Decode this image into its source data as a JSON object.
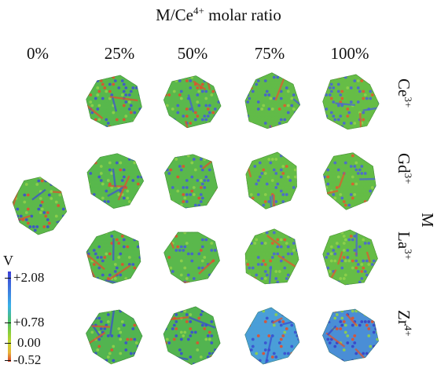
{
  "title": {
    "prefix": "M/Ce",
    "sup": "4+",
    "suffix": " molar ratio"
  },
  "columns": [
    "0%",
    "25%",
    "50%",
    "75%",
    "100%"
  ],
  "rows": [
    {
      "base": "Ce",
      "charge": "3+"
    },
    {
      "base": "Gd",
      "charge": "3+"
    },
    {
      "base": "La",
      "charge": "3+"
    },
    {
      "base": "Zr",
      "charge": "4+"
    }
  ],
  "side_label": "M",
  "colorbar": {
    "title": "V",
    "ticks": [
      "+2.08",
      "+0.78",
      "0.00",
      "-0.52"
    ],
    "colors": {
      "high": "#3b3fd6",
      "mid": "#4cc06a",
      "low": "#d8402a"
    }
  },
  "nanoparticles": [
    {
      "row": null,
      "col": 0,
      "base": "#5db84a",
      "accent": "#3a4fcf",
      "hot": "#e0502e"
    },
    {
      "row": 0,
      "col": 1,
      "base": "#58b84c",
      "accent": "#3f55d0",
      "hot": "#e0502e"
    },
    {
      "row": 0,
      "col": 2,
      "base": "#5ab84c",
      "accent": "#4460d4",
      "hot": "#e0502e"
    },
    {
      "row": 0,
      "col": 3,
      "base": "#62bb48",
      "accent": "#4560d2",
      "hot": "#e25a2e"
    },
    {
      "row": 0,
      "col": 4,
      "base": "#66bd46",
      "accent": "#4a66d4",
      "hot": "#e25a2e"
    },
    {
      "row": 1,
      "col": 1,
      "base": "#58b84c",
      "accent": "#3f55d0",
      "hot": "#e0502e"
    },
    {
      "row": 1,
      "col": 2,
      "base": "#5ab84c",
      "accent": "#4460d4",
      "hot": "#e0502e"
    },
    {
      "row": 1,
      "col": 3,
      "base": "#64bc46",
      "accent": "#4a66d4",
      "hot": "#e25a2e"
    },
    {
      "row": 1,
      "col": 4,
      "base": "#64bc46",
      "accent": "#4a66d4",
      "hot": "#e25a2e"
    },
    {
      "row": 2,
      "col": 1,
      "base": "#58b84c",
      "accent": "#3f55d0",
      "hot": "#e0502e"
    },
    {
      "row": 2,
      "col": 2,
      "base": "#5ab84c",
      "accent": "#4460d4",
      "hot": "#e0502e"
    },
    {
      "row": 2,
      "col": 3,
      "base": "#64bc46",
      "accent": "#4a66d4",
      "hot": "#e25a2e"
    },
    {
      "row": 2,
      "col": 4,
      "base": "#66bd46",
      "accent": "#4a66d4",
      "hot": "#e25a2e"
    },
    {
      "row": 3,
      "col": 1,
      "base": "#52b450",
      "accent": "#3a4fcf",
      "hot": "#e0502e"
    },
    {
      "row": 3,
      "col": 2,
      "base": "#52b450",
      "accent": "#3a4fcf",
      "hot": "#e0502e"
    },
    {
      "row": 3,
      "col": 3,
      "base": "#4a9ed8",
      "accent": "#3a4fcf",
      "hot": "#e0502e"
    },
    {
      "row": 3,
      "col": 4,
      "base": "#4a8ed6",
      "accent": "#3842c8",
      "hot": "#e0502e"
    }
  ]
}
